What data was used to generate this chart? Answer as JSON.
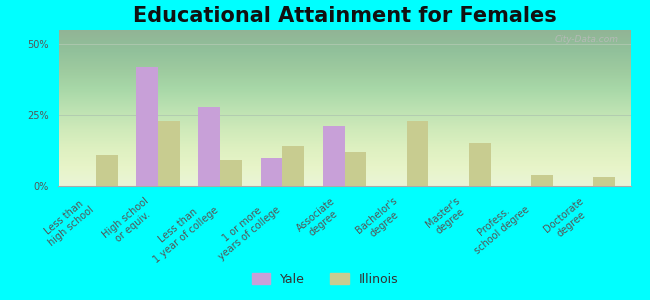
{
  "title": "Educational Attainment for Females",
  "categories": [
    "Less than\nhigh school",
    "High school\nor equiv.",
    "Less than\n1 year of college",
    "1 or more\nyears of college",
    "Associate\ndegree",
    "Bachelor's\ndegree",
    "Master's\ndegree",
    "Profess.\nschool degree",
    "Doctorate\ndegree"
  ],
  "yale_values": [
    0,
    42,
    28,
    10,
    21,
    0,
    0,
    0,
    0
  ],
  "illinois_values": [
    11,
    23,
    9,
    14,
    12,
    23,
    15,
    4,
    3
  ],
  "yale_color": "#c8a0d8",
  "illinois_color": "#c8cc90",
  "background_color": "#00ffff",
  "ylabel_ticks": [
    "0%",
    "25%",
    "50%"
  ],
  "ytick_vals": [
    0,
    25,
    50
  ],
  "ylim": [
    0,
    55
  ],
  "bar_width": 0.35,
  "title_fontsize": 15,
  "tick_fontsize": 7,
  "legend_fontsize": 9,
  "watermark": "City-Data.com"
}
